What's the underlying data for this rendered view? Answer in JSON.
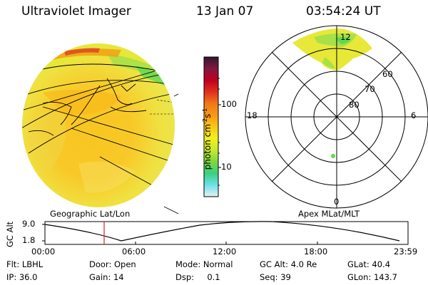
{
  "header": {
    "title": "Ultraviolet Imager",
    "date": "13 Jan 07",
    "time": "03:54:24 UT"
  },
  "colorbar": {
    "label": "photon cm",
    "label_exp1": "-2",
    "label_mid": "s",
    "label_exp2": "-1",
    "ticks": [
      "100",
      "10"
    ],
    "stops": [
      "#e8f0f0",
      "#6ee0e8",
      "#3cd080",
      "#7cd840",
      "#c8e830",
      "#f0f020",
      "#f8c818",
      "#f89818",
      "#f07818",
      "#e03020",
      "#c00020",
      "#801840",
      "#301830"
    ]
  },
  "geo_map": {
    "label": "Geographic Lat/Lon"
  },
  "polar_map": {
    "label": "Apex MLat/MLT",
    "mlt_labels": {
      "top": "12",
      "bottom": "0",
      "left": "18",
      "right": "6"
    },
    "lat_labels": [
      "60",
      "70",
      "80"
    ]
  },
  "timeline": {
    "axis_label": "GC Alt",
    "y_ticks": [
      "9.0",
      "1.8"
    ],
    "x_ticks": [
      "00:00",
      "06:00",
      "12:00",
      "18:00",
      "23:59"
    ],
    "current_time_fraction": 0.163
  },
  "info": {
    "row1": [
      {
        "label": "Flt:",
        "value": "LBHL"
      },
      {
        "label": "Door:",
        "value": "Open"
      },
      {
        "label": "Mode:",
        "value": "Normal"
      },
      {
        "label": "GC Alt:",
        "value": "4.0 Re"
      },
      {
        "label": "GLat:",
        "value": "40.4"
      }
    ],
    "row2": [
      {
        "label": "IP:",
        "value": "36.0"
      },
      {
        "label": "Gain:",
        "value": "14"
      },
      {
        "label": "Dsp:",
        "value": "0.1"
      },
      {
        "label": "Seq:",
        "value": "39"
      },
      {
        "label": "GLon:",
        "value": "143.7"
      }
    ]
  }
}
